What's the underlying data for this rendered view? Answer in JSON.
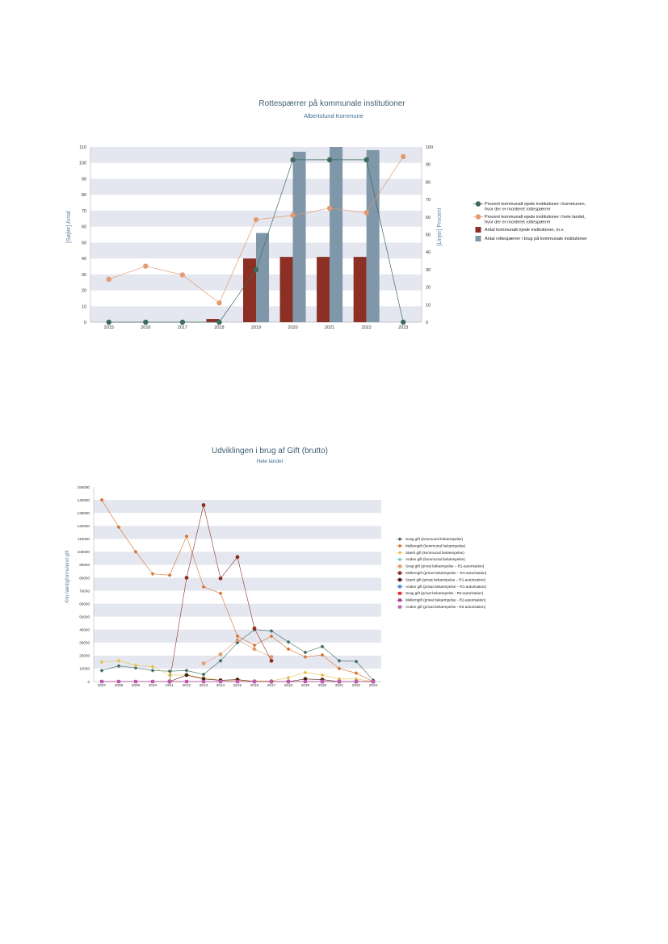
{
  "chart_data": [
    {
      "type": "bar",
      "title": "Rottespærrer på kommunale institutioner",
      "subtitle": "Albertslund Kommune",
      "categories": [
        "2015",
        "2016",
        "2017",
        "2018",
        "2019",
        "2020",
        "2021",
        "2022",
        "2023"
      ],
      "ylabel": "[Søjler] Antal",
      "y2label": "[Linjer] Procent",
      "ylim": [
        0,
        110
      ],
      "y2lim": [
        0,
        100
      ],
      "yticks": [
        0,
        10,
        20,
        30,
        40,
        50,
        60,
        70,
        80,
        90,
        100,
        110
      ],
      "y2ticks": [
        0,
        10,
        20,
        30,
        40,
        50,
        60,
        70,
        80,
        90,
        100
      ],
      "grid": "alternating horizontal bands",
      "legend_position": "right",
      "series": [
        {
          "name": "Procent kommunalt ejede institutioner i kommunen, hvor der er monteret rottespærrer",
          "kind": "line",
          "axis": "right",
          "color": "#3d6b5e",
          "marker": "circle",
          "values": [
            0,
            0,
            0,
            0,
            30,
            92.7,
            92.7,
            92.7,
            0
          ]
        },
        {
          "name": "Procent kommunalt ejede institutioner i hele landet, hvor der er monteret rottespærrer",
          "kind": "line",
          "axis": "right",
          "color": "#e39b72",
          "marker": "circle",
          "values": [
            24.5,
            32,
            27,
            11,
            58.5,
            61,
            65,
            62.5,
            94.5
          ]
        },
        {
          "name": "Antal kommunalt ejede institutioner, m.v.",
          "kind": "bar",
          "axis": "left",
          "color": "#8c2f25",
          "values": [
            0,
            0,
            0,
            2,
            40,
            41,
            41,
            41,
            0
          ]
        },
        {
          "name": "Antal rottespærrer i brug på kommunale institutioner",
          "kind": "bar",
          "axis": "left",
          "color": "#7f97a8",
          "values": [
            0,
            0,
            0,
            0,
            56,
            107,
            110,
            108,
            0
          ]
        }
      ]
    },
    {
      "type": "line",
      "title": "Udviklingen i brug af Gift (brutto)",
      "subtitle": "Hele landet",
      "categories": [
        "2007",
        "2008",
        "2009",
        "2010",
        "2011",
        "2012",
        "2013",
        "2014",
        "2015",
        "2016",
        "2017",
        "2018",
        "2019",
        "2020",
        "2021",
        "2022",
        "2023"
      ],
      "ylabel": "Kilo færdigformuleret gift",
      "ylim": [
        0,
        150000
      ],
      "yticks": [
        0,
        10000,
        20000,
        30000,
        40000,
        50000,
        60000,
        70000,
        80000,
        90000,
        100000,
        110000,
        120000,
        130000,
        140000,
        150000
      ],
      "grid": "alternating horizontal bands",
      "legend_position": "right",
      "series": [
        {
          "name": "Svag gift (kommunal bekæmpelse)",
          "color": "#3d6b5e",
          "marker": "diamond",
          "values": [
            8500,
            12000,
            10500,
            8500,
            8000,
            8500,
            5500,
            16000,
            30000,
            40000,
            39000,
            30500,
            22500,
            27000,
            16000,
            15500,
            1000
          ]
        },
        {
          "name": "Mellemgift (kommunal bekæmpelse)",
          "color": "#d96f2c",
          "marker": "diamond",
          "values": [
            140000,
            119000,
            100000,
            83000,
            82000,
            112000,
            73000,
            68000,
            35000,
            28000,
            35000,
            25000,
            19000,
            20500,
            10000,
            6500,
            0
          ]
        },
        {
          "name": "Stærk gift (kommunal bekæmpelse)",
          "color": "#e6c24a",
          "marker": "diamond",
          "values": [
            15000,
            16000,
            12500,
            11500,
            5000,
            5000,
            3000,
            1000,
            1000,
            500,
            500,
            3000,
            7000,
            5000,
            2000,
            2000,
            0
          ]
        },
        {
          "name": "Anden gift (kommunal bekæmpelse)",
          "color": "#5ad1c8",
          "marker": "diamond",
          "values": [
            0,
            0,
            0,
            0,
            0,
            0,
            0,
            0,
            0,
            0,
            0,
            0,
            0,
            0,
            0,
            0,
            0
          ]
        },
        {
          "name": "Svag gift (privat bekæmpelse – R1-autorisation)",
          "color": "#e39b72",
          "marker": "circle",
          "values": [
            null,
            null,
            null,
            null,
            null,
            null,
            14000,
            21000,
            32000,
            25000,
            19000,
            null,
            null,
            null,
            null,
            null,
            null
          ]
        },
        {
          "name": "Mellemgift (privat bekæmpelse – R1-autorisation)",
          "color": "#8c2f25",
          "marker": "circle",
          "values": [
            null,
            null,
            null,
            null,
            0,
            80000,
            136000,
            79500,
            96000,
            41000,
            16000,
            null,
            null,
            null,
            null,
            null,
            null
          ]
        },
        {
          "name": "Stærk gift (privat bekæmpelse – R1-autorisation)",
          "color": "#4a1f12",
          "marker": "circle",
          "values": [
            null,
            null,
            null,
            null,
            0,
            5000,
            2000,
            1000,
            1500,
            0,
            0,
            0,
            2000,
            1500,
            0,
            0,
            0
          ]
        },
        {
          "name": "Anden gift (privat bekæmpelse – R1-autorisation)",
          "color": "#5a88d6",
          "marker": "circle",
          "values": [
            null,
            null,
            null,
            null,
            null,
            null,
            null,
            null,
            null,
            null,
            null,
            null,
            null,
            0,
            0,
            0,
            null
          ]
        },
        {
          "name": "Svag gift (privat bekæmpelse - R2-autorisation)",
          "color": "#e03030",
          "marker": "square",
          "values": [
            0,
            0,
            0,
            0,
            0,
            0,
            0,
            0,
            0,
            0,
            0,
            0,
            0,
            0,
            0,
            0,
            0
          ]
        },
        {
          "name": "Mellemgift (privat bekæmpelse - R2-autorisation)",
          "color": "#9c3f8a",
          "marker": "square",
          "values": [
            0,
            0,
            0,
            0,
            0,
            0,
            0,
            0,
            0,
            0,
            0,
            0,
            0,
            0,
            0,
            0,
            0
          ]
        },
        {
          "name": "Anden gift (privat bekæmpelse - R2-autorisation)",
          "color": "#c25ab5",
          "marker": "square",
          "values": [
            0,
            0,
            0,
            0,
            0,
            0,
            0,
            0,
            0,
            0,
            0,
            0,
            0,
            0,
            0,
            0,
            0
          ]
        }
      ]
    }
  ]
}
